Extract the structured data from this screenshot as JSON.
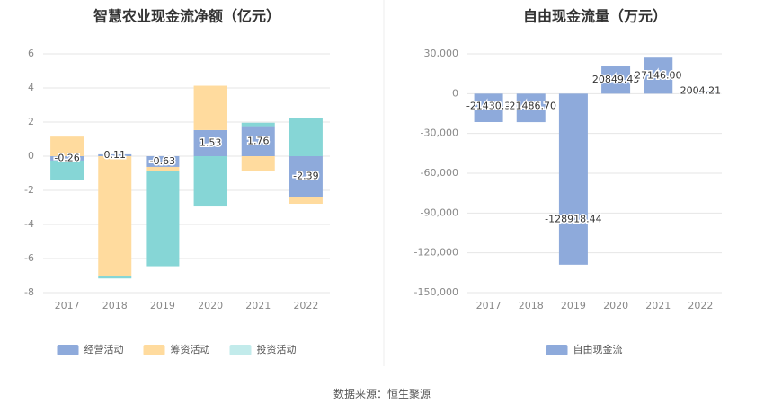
{
  "footer": {
    "source": "数据来源：恒生聚源"
  },
  "colors": {
    "operating": "#8eaadb",
    "financing": "#ffdb9e",
    "investing": "#86d6d6",
    "investing_legend": "#c2ebeb",
    "free_cash_flow": "#8eaadb",
    "grid": "#e6e6e6",
    "axis_text": "#888888",
    "label_text": "#333333"
  },
  "chart_data": [
    {
      "type": "bar",
      "stacked": true,
      "title": "智慧农业现金流净额（亿元）",
      "categories": [
        "2017",
        "2018",
        "2019",
        "2020",
        "2021",
        "2022"
      ],
      "ylim": [
        -8,
        6
      ],
      "yticks": [
        6,
        4,
        2,
        0,
        -2,
        -4,
        -6,
        -8
      ],
      "ytick_labels": [
        "6",
        "4",
        "2",
        "0",
        "-2",
        "-4",
        "-6",
        "-8"
      ],
      "grid": true,
      "legend_position": "bottom",
      "series": [
        {
          "name": "经营活动",
          "color_key": "operating",
          "values": [
            -0.26,
            0.11,
            -0.63,
            1.53,
            1.76,
            -2.39
          ],
          "labels": [
            "-0.26",
            "0.11",
            "-0.63",
            "1.53",
            "1.76",
            "-2.39"
          ]
        },
        {
          "name": "筹资活动",
          "color_key": "financing",
          "values": [
            1.15,
            -7.05,
            -0.22,
            2.6,
            -0.85,
            -0.4
          ]
        },
        {
          "name": "投资活动",
          "color_key": "investing",
          "values": [
            -1.15,
            -0.12,
            -5.6,
            -2.95,
            0.2,
            2.25
          ]
        }
      ]
    },
    {
      "type": "bar",
      "title": "自由现金流量（万元）",
      "categories": [
        "2017",
        "2018",
        "2019",
        "2020",
        "2021",
        "2022"
      ],
      "ylim": [
        -150000,
        30000
      ],
      "yticks": [
        30000,
        0,
        -30000,
        -60000,
        -90000,
        -120000,
        -150000
      ],
      "ytick_labels": [
        "30,000",
        "0",
        "-30,000",
        "-60,000",
        "-90,000",
        "-120,000",
        "-150,000"
      ],
      "grid": true,
      "legend_position": "bottom",
      "series": [
        {
          "name": "自由现金流",
          "color_key": "free_cash_flow",
          "values": [
            -21430.3,
            -21486.7,
            -128918.44,
            20849.45,
            27146.0,
            2004.21
          ],
          "labels": [
            "-21430.3",
            "-21486.70",
            "-128918.44",
            "20849.45",
            "27146.00",
            "2004.21"
          ]
        }
      ]
    }
  ]
}
